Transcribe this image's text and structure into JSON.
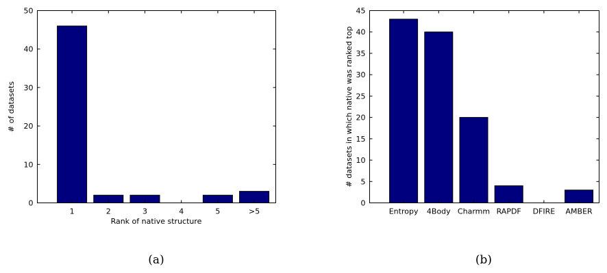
{
  "chart_data": [
    {
      "type": "bar",
      "caption": "(a)",
      "categories": [
        "1",
        "2",
        "3",
        "4",
        "5",
        ">5"
      ],
      "values": [
        46,
        2,
        2,
        0,
        2,
        3
      ],
      "xlabel": "Rank of native structure",
      "ylabel": "# of datasets",
      "ylim": [
        0,
        50
      ],
      "yticks": [
        0,
        10,
        20,
        30,
        40,
        50
      ],
      "bar_color": "#00007f",
      "grid": false
    },
    {
      "type": "bar",
      "caption": "(b)",
      "categories": [
        "Entropy",
        "4Body",
        "Charmm",
        "RAPDF",
        "DFIRE",
        "AMBER"
      ],
      "values": [
        43,
        40,
        20,
        4,
        0,
        3
      ],
      "xlabel": "",
      "ylabel": "# datasets in which native was ranked top",
      "ylim": [
        0,
        45
      ],
      "yticks": [
        0,
        5,
        10,
        15,
        20,
        25,
        30,
        35,
        40,
        45
      ],
      "bar_color": "#00007f",
      "grid": false
    }
  ]
}
